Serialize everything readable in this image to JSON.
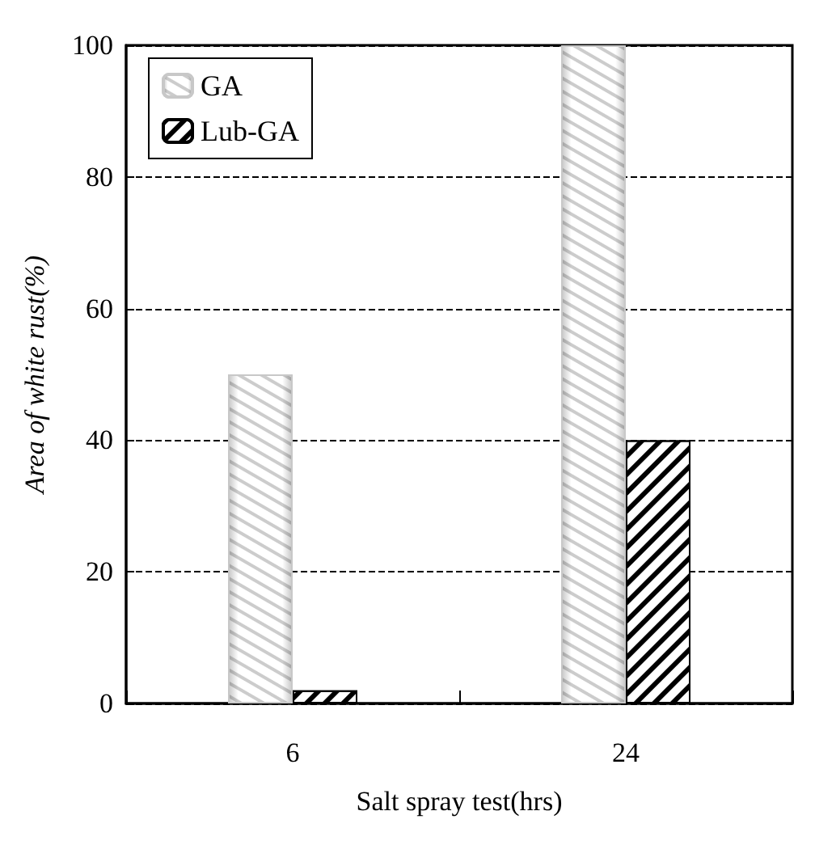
{
  "chart_data": {
    "type": "bar",
    "xlabel": "Salt spray test(hrs)",
    "ylabel": "Area of white rust(%)",
    "categories": [
      "6",
      "24"
    ],
    "series": [
      {
        "name": "GA",
        "color": "#c8c8c8",
        "values": [
          50,
          100
        ]
      },
      {
        "name": "Lub-GA",
        "color": "#000000",
        "values": [
          2,
          40
        ]
      }
    ],
    "ylim": [
      0,
      100
    ],
    "yticks": [
      0,
      20,
      40,
      60,
      80,
      100
    ],
    "grid": "y",
    "line_style": "dashed",
    "legend": "top left"
  }
}
